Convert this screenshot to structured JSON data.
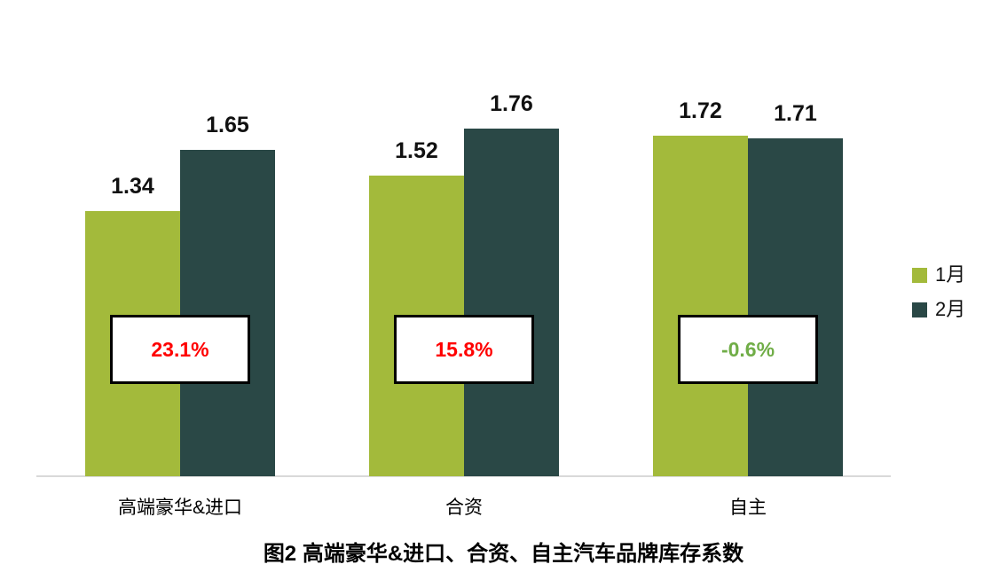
{
  "chart_data": {
    "type": "bar",
    "title": "图2 高端豪华&进口、合资、自主汽车品牌库存系数",
    "categories": [
      "高端豪华&进口",
      "合资",
      "自主"
    ],
    "series": [
      {
        "name": "1月",
        "color": "#A3BA3B",
        "values": [
          1.34,
          1.52,
          1.72
        ]
      },
      {
        "name": "2月",
        "color": "#2A4846",
        "values": [
          1.65,
          1.76,
          1.71
        ]
      }
    ],
    "value_labels": [
      [
        "1.34",
        "1.52",
        "1.72"
      ],
      [
        "1.65",
        "1.76",
        "1.71"
      ]
    ],
    "change_annotations": [
      {
        "text": "23.1%",
        "color": "#FF0000"
      },
      {
        "text": "15.8%",
        "color": "#FF0000"
      },
      {
        "text": "-0.6%",
        "color": "#70AD47"
      }
    ],
    "xlabel": "",
    "ylabel": "",
    "ylim": [
      0,
      2.4
    ],
    "grid": false,
    "legend_position": "right",
    "axis_line_color": "#D9D9D9",
    "annotation_border_color": "#000000",
    "annotation_background": "#FFFFFF"
  }
}
